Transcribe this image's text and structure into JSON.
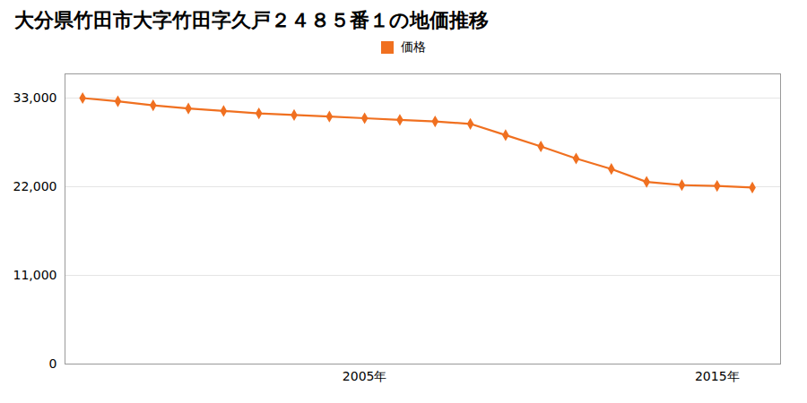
{
  "chart_data": {
    "type": "line",
    "title": "大分県竹田市大字竹田字久戸２４８５番１の地価推移",
    "x": [
      1997,
      1998,
      1999,
      2000,
      2001,
      2002,
      2003,
      2004,
      2005,
      2006,
      2007,
      2008,
      2009,
      2010,
      2011,
      2012,
      2013,
      2014,
      2015,
      2016
    ],
    "series": [
      {
        "name": "価格",
        "color": "#f07020",
        "marker": "diamond",
        "values": [
          33000,
          32600,
          32100,
          31700,
          31400,
          31100,
          30900,
          30700,
          30500,
          30300,
          30100,
          29800,
          28400,
          27000,
          25500,
          24200,
          22600,
          22200,
          22100,
          21900
        ]
      }
    ],
    "xlim": [
      1996.5,
      2016.8
    ],
    "xticks": [
      {
        "value": 2005,
        "label": "2005年"
      },
      {
        "value": 2015,
        "label": "2015年"
      }
    ],
    "ylim": [
      0,
      36000
    ],
    "yticks": [
      0,
      {
        "value": 11000,
        "label": "11,000"
      },
      {
        "value": 22000,
        "label": "22,000"
      },
      {
        "value": 33000,
        "label": "33,000"
      }
    ],
    "grid": true,
    "legend": "top"
  }
}
